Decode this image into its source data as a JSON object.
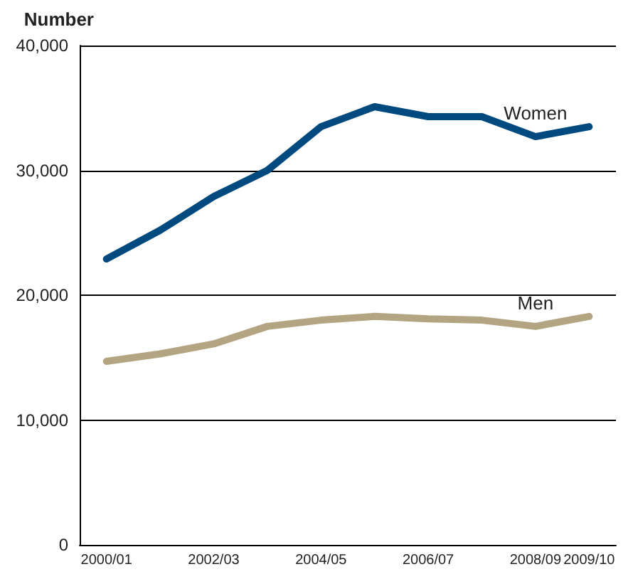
{
  "chart_data": {
    "type": "line",
    "ylabel": "Number",
    "categories": [
      "2000/01",
      null,
      "2002/03",
      null,
      "2004/05",
      null,
      "2006/07",
      null,
      "2008/09",
      "2009/10"
    ],
    "series": [
      {
        "name": "Women",
        "color": "#004a80",
        "values": [
          22900,
          25200,
          27900,
          30000,
          33500,
          35100,
          34300,
          34300,
          32700,
          33500
        ]
      },
      {
        "name": "Men",
        "color": "#b4a582",
        "values": [
          14700,
          15300,
          16100,
          17500,
          18000,
          18300,
          18100,
          18000,
          17500,
          18300
        ]
      }
    ],
    "ylim": [
      0,
      40000
    ],
    "yticks": [
      {
        "value": 0,
        "label": "0"
      },
      {
        "value": 10000,
        "label": "10,000"
      },
      {
        "value": 20000,
        "label": "20,000"
      },
      {
        "value": 30000,
        "label": "30,000"
      },
      {
        "value": 40000,
        "label": "40,000"
      }
    ],
    "grid": "y",
    "legend": false,
    "marker": "none",
    "line_style": "solid"
  }
}
